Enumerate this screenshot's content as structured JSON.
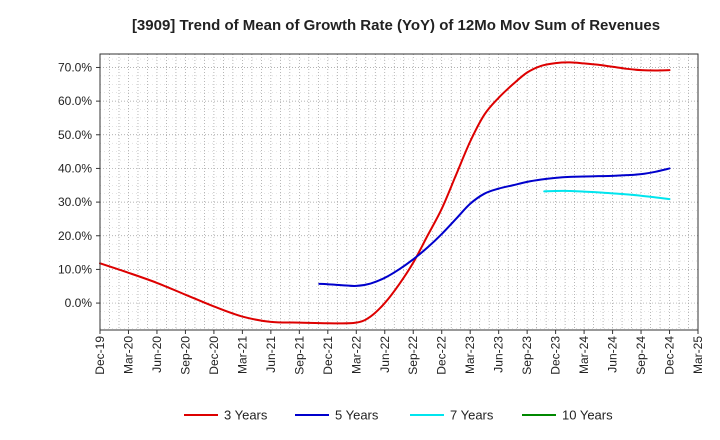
{
  "chart_data": {
    "type": "line",
    "title": "[3909]  Trend of Mean of Growth Rate (YoY) of 12Mo Mov Sum of Revenues",
    "xlabel": "",
    "ylabel": "",
    "ylim": [
      -8,
      74
    ],
    "yticks": [
      0,
      10,
      20,
      30,
      40,
      50,
      60,
      70
    ],
    "ytick_labels": [
      "0.0%",
      "10.0%",
      "20.0%",
      "30.0%",
      "40.0%",
      "50.0%",
      "60.0%",
      "70.0%"
    ],
    "x_categories": [
      "Dec-19",
      "Mar-20",
      "Jun-20",
      "Sep-20",
      "Dec-20",
      "Mar-21",
      "Jun-21",
      "Sep-21",
      "Dec-21",
      "Mar-22",
      "Jun-22",
      "Sep-22",
      "Dec-22",
      "Mar-23",
      "Jun-23",
      "Sep-23",
      "Dec-23",
      "Mar-24",
      "Jun-24",
      "Sep-24",
      "Dec-24",
      "Mar-25"
    ],
    "grid": true,
    "legend_position": "bottom",
    "series": [
      {
        "name": "3 Years",
        "color": "#dd0000",
        "points": [
          [
            0,
            11.8
          ],
          [
            1,
            9
          ],
          [
            2,
            6
          ],
          [
            3,
            2.5
          ],
          [
            4,
            -1
          ],
          [
            5,
            -4
          ],
          [
            6,
            -5.6
          ],
          [
            7,
            -5.8
          ],
          [
            8,
            -6
          ],
          [
            9,
            -5.8
          ],
          [
            9.5,
            -4
          ],
          [
            10,
            0
          ],
          [
            10.5,
            5.5
          ],
          [
            11,
            12
          ],
          [
            11.5,
            20
          ],
          [
            12,
            28
          ],
          [
            12.5,
            38
          ],
          [
            13,
            48
          ],
          [
            13.5,
            56
          ],
          [
            14,
            61
          ],
          [
            14.5,
            65
          ],
          [
            15,
            68.5
          ],
          [
            15.5,
            70.5
          ],
          [
            16,
            71.3
          ],
          [
            16.5,
            71.5
          ],
          [
            17,
            71.2
          ],
          [
            17.5,
            70.8
          ],
          [
            18,
            70.2
          ],
          [
            18.5,
            69.6
          ],
          [
            19,
            69.2
          ],
          [
            19.5,
            69.1
          ],
          [
            20,
            69.2
          ]
        ]
      },
      {
        "name": "5 Years",
        "color": "#0000cc",
        "points": [
          [
            7.7,
            5.7
          ],
          [
            8,
            5.6
          ],
          [
            8.5,
            5.3
          ],
          [
            9,
            5.1
          ],
          [
            9.5,
            5.8
          ],
          [
            10,
            7.5
          ],
          [
            10.5,
            10
          ],
          [
            11,
            13
          ],
          [
            11.5,
            16.5
          ],
          [
            12,
            20.5
          ],
          [
            12.5,
            25
          ],
          [
            13,
            29.5
          ],
          [
            13.5,
            32.5
          ],
          [
            14,
            34
          ],
          [
            14.5,
            35
          ],
          [
            15,
            36
          ],
          [
            15.5,
            36.7
          ],
          [
            16,
            37.2
          ],
          [
            16.5,
            37.5
          ],
          [
            17,
            37.6
          ],
          [
            17.5,
            37.7
          ],
          [
            18,
            37.8
          ],
          [
            18.5,
            38
          ],
          [
            19,
            38.3
          ],
          [
            19.5,
            39
          ],
          [
            20,
            40
          ]
        ]
      },
      {
        "name": "7 Years",
        "color": "#00e5ee",
        "points": [
          [
            15.6,
            33.2
          ],
          [
            16,
            33.3
          ],
          [
            16.5,
            33.3
          ],
          [
            17,
            33.1
          ],
          [
            17.5,
            32.9
          ],
          [
            18,
            32.6
          ],
          [
            18.5,
            32.3
          ],
          [
            19,
            31.9
          ],
          [
            19.5,
            31.4
          ],
          [
            20,
            30.9
          ]
        ]
      },
      {
        "name": "10 Years",
        "color": "#008800",
        "points": []
      }
    ]
  }
}
